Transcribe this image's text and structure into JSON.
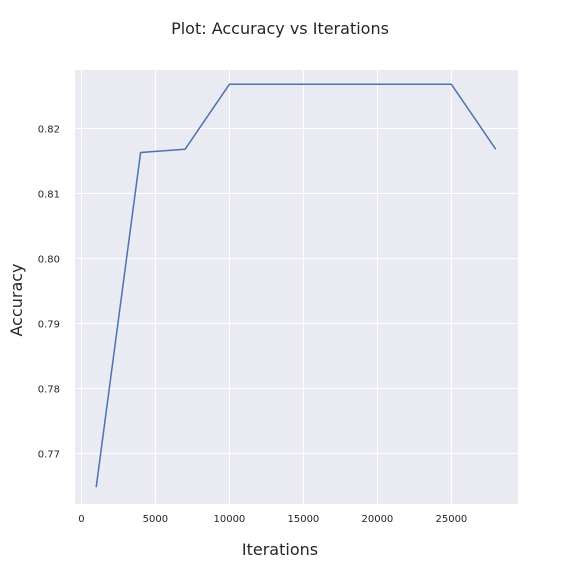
{
  "chart_data": {
    "type": "line",
    "title": "Plot: Accuracy vs Iterations",
    "xlabel": "Iterations",
    "ylabel": "Accuracy",
    "xlim": [
      -500,
      29500
    ],
    "ylim": [
      0.7622,
      0.829
    ],
    "xticks": [
      0,
      5000,
      10000,
      15000,
      20000,
      25000
    ],
    "xtick_labels": [
      "0",
      "5000",
      "10000",
      "15000",
      "20000",
      "25000"
    ],
    "yticks": [
      0.77,
      0.78,
      0.79,
      0.8,
      0.81,
      0.82
    ],
    "ytick_labels": [
      "0.77",
      "0.78",
      "0.79",
      "0.80",
      "0.81",
      "0.82"
    ],
    "grid": true,
    "series": [
      {
        "x": [
          1000,
          4000,
          7000,
          10000,
          13000,
          16000,
          19000,
          22000,
          25000,
          28000
        ],
        "y": [
          0.7648,
          0.8163,
          0.8168,
          0.8268,
          0.8268,
          0.8268,
          0.8268,
          0.8268,
          0.8268,
          0.8168
        ],
        "color": "#4c72b0"
      }
    ],
    "colors": {
      "plot_background": "#eaeaf2",
      "grid": "#ffffff",
      "text": "#262626"
    }
  }
}
